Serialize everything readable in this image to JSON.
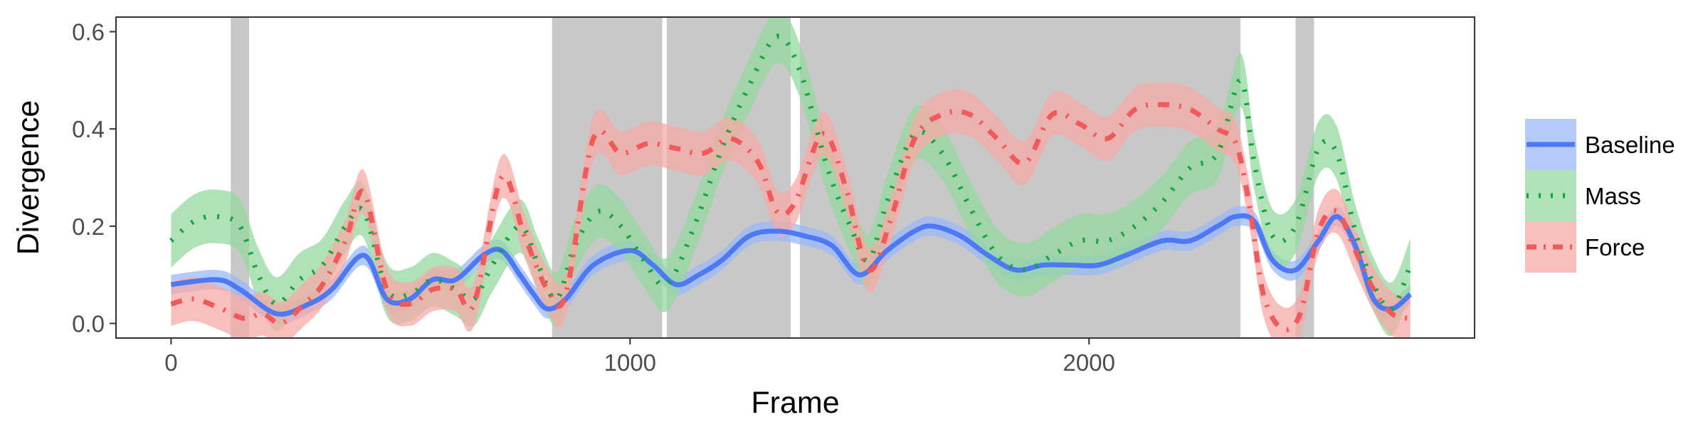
{
  "chart_data": {
    "type": "line",
    "xlabel": "Frame",
    "ylabel": "Divergence",
    "xlim": [
      -120,
      2840
    ],
    "ylim": [
      -0.03,
      0.63
    ],
    "xticks": [
      0,
      1000,
      2000
    ],
    "yticks": [
      0.0,
      0.2,
      0.4,
      0.6
    ],
    "xtick_labels": [
      "0",
      "1000",
      "2000"
    ],
    "ytick_labels": [
      "0.0",
      "0.2",
      "0.4",
      "0.6"
    ],
    "grid": false,
    "legend_position": "right",
    "shaded_regions": [
      [
        130,
        170
      ],
      [
        830,
        1070
      ],
      [
        1080,
        1350
      ],
      [
        1370,
        2330
      ],
      [
        2450,
        2490
      ]
    ],
    "series": [
      {
        "name": "Baseline",
        "color": "#4d79f6",
        "band_color": "#9bb8f8",
        "line_style": "solid",
        "x": [
          0,
          100,
          150,
          230,
          300,
          350,
          420,
          470,
          520,
          570,
          620,
          680,
          720,
          760,
          790,
          820,
          860,
          920,
          1000,
          1050,
          1100,
          1150,
          1200,
          1260,
          1320,
          1380,
          1440,
          1500,
          1560,
          1620,
          1660,
          1720,
          1780,
          1840,
          1900,
          1960,
          2020,
          2080,
          2160,
          2220,
          2280,
          2320,
          2360,
          2400,
          2450,
          2500,
          2540,
          2580,
          2620,
          2660,
          2700
        ],
        "y": [
          0.08,
          0.09,
          0.07,
          0.02,
          0.04,
          0.07,
          0.14,
          0.05,
          0.05,
          0.09,
          0.09,
          0.14,
          0.15,
          0.1,
          0.06,
          0.03,
          0.05,
          0.12,
          0.15,
          0.12,
          0.08,
          0.1,
          0.13,
          0.18,
          0.19,
          0.18,
          0.16,
          0.1,
          0.15,
          0.19,
          0.2,
          0.18,
          0.14,
          0.11,
          0.12,
          0.12,
          0.12,
          0.14,
          0.17,
          0.17,
          0.2,
          0.22,
          0.21,
          0.13,
          0.11,
          0.17,
          0.22,
          0.16,
          0.05,
          0.03,
          0.06
        ],
        "band": 0.02
      },
      {
        "name": "Mass",
        "color": "#11a63d",
        "band_color": "#94d99f",
        "line_style": "dotted",
        "x": [
          0,
          50,
          100,
          150,
          190,
          230,
          280,
          330,
          380,
          420,
          470,
          520,
          570,
          620,
          660,
          700,
          760,
          800,
          840,
          880,
          930,
          980,
          1030,
          1080,
          1140,
          1200,
          1260,
          1320,
          1370,
          1430,
          1480,
          1520,
          1560,
          1620,
          1680,
          1740,
          1800,
          1860,
          1920,
          1980,
          2040,
          2100,
          2160,
          2220,
          2280,
          2330,
          2360,
          2400,
          2450,
          2500,
          2540,
          2580,
          2620,
          2660,
          2700
        ],
        "y": [
          0.17,
          0.21,
          0.22,
          0.2,
          0.1,
          0.04,
          0.09,
          0.12,
          0.2,
          0.23,
          0.07,
          0.06,
          0.09,
          0.07,
          0.05,
          0.12,
          0.2,
          0.12,
          0.05,
          0.16,
          0.23,
          0.2,
          0.13,
          0.08,
          0.2,
          0.36,
          0.49,
          0.59,
          0.52,
          0.32,
          0.2,
          0.13,
          0.25,
          0.39,
          0.35,
          0.24,
          0.14,
          0.11,
          0.14,
          0.17,
          0.17,
          0.2,
          0.25,
          0.32,
          0.35,
          0.5,
          0.33,
          0.18,
          0.2,
          0.36,
          0.35,
          0.19,
          0.08,
          0.03,
          0.12
        ],
        "band": 0.055
      },
      {
        "name": "Force",
        "color": "#f15a5a",
        "band_color": "#f5a9a5",
        "line_style": "dashdot",
        "x": [
          0,
          50,
          110,
          160,
          200,
          240,
          290,
          330,
          380,
          420,
          470,
          520,
          570,
          620,
          660,
          720,
          770,
          820,
          860,
          920,
          980,
          1040,
          1100,
          1160,
          1220,
          1280,
          1320,
          1360,
          1420,
          1470,
          1520,
          1570,
          1620,
          1680,
          1740,
          1800,
          1860,
          1920,
          1980,
          2040,
          2100,
          2160,
          2220,
          2280,
          2320,
          2350,
          2380,
          2420,
          2460,
          2500,
          2540,
          2580,
          2620,
          2660,
          2700
        ],
        "y": [
          0.04,
          0.05,
          0.03,
          0.01,
          0.02,
          0.0,
          0.04,
          0.08,
          0.17,
          0.27,
          0.07,
          0.04,
          0.07,
          0.07,
          0.04,
          0.3,
          0.18,
          0.07,
          0.06,
          0.38,
          0.35,
          0.37,
          0.36,
          0.35,
          0.38,
          0.33,
          0.23,
          0.25,
          0.39,
          0.28,
          0.11,
          0.22,
          0.38,
          0.43,
          0.43,
          0.38,
          0.33,
          0.43,
          0.41,
          0.38,
          0.44,
          0.45,
          0.44,
          0.4,
          0.37,
          0.24,
          0.06,
          -0.01,
          0.02,
          0.19,
          0.23,
          0.15,
          0.07,
          0.02,
          0.01
        ],
        "band": 0.045
      }
    ]
  },
  "legend": {
    "items": [
      {
        "label": "Baseline",
        "icon": "solid-line-icon"
      },
      {
        "label": "Mass",
        "icon": "dotted-line-icon"
      },
      {
        "label": "Force",
        "icon": "dashdot-line-icon"
      }
    ]
  },
  "colors": {
    "shading": "#c8c8c8",
    "panel_border": "#333333",
    "tick_text": "#4d4d4d"
  }
}
